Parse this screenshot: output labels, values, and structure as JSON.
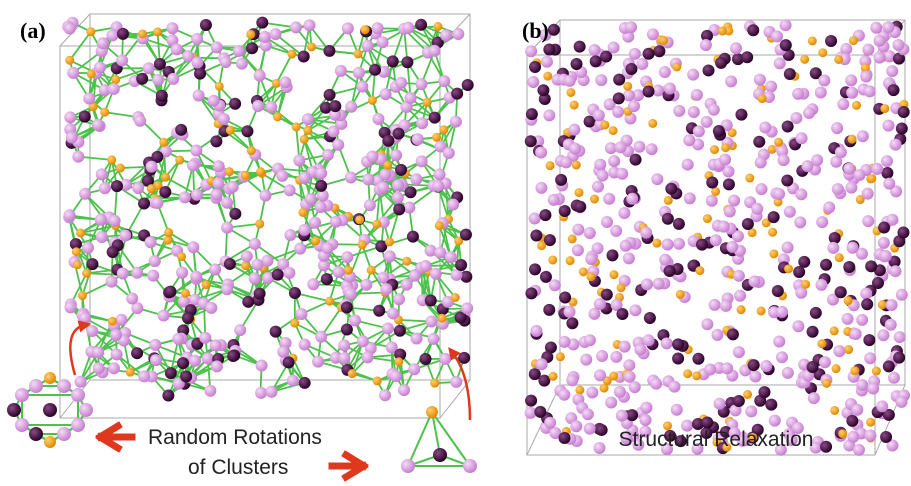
{
  "panels": [
    {
      "label": "(a)"
    },
    {
      "label": "(b)",
      "caption": "Structural Relaxation"
    }
  ],
  "annotation": {
    "line1": "Random Rotations",
    "line2": "of Clusters"
  }
}
